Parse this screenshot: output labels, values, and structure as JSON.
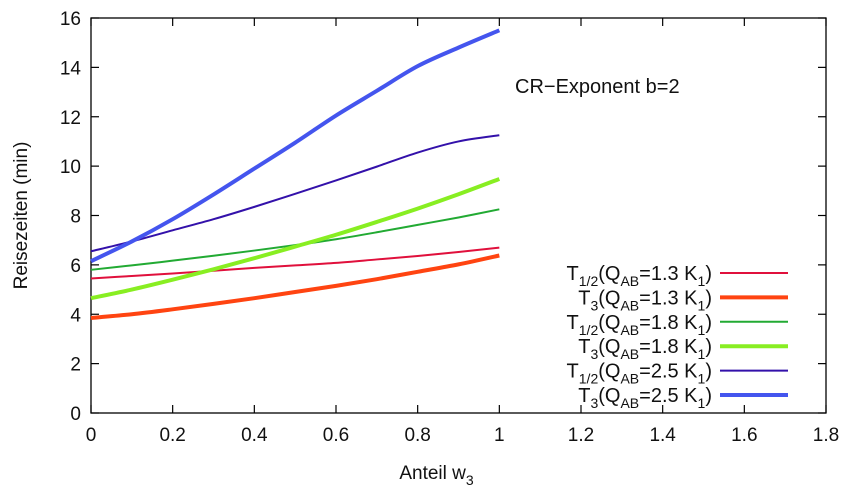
{
  "chart_data": {
    "type": "line",
    "xlabel": "Anteil w",
    "xlabel_sub": "3",
    "ylabel": "Reisezeiten (min)",
    "xlim": [
      0,
      1.8
    ],
    "ylim": [
      0,
      16
    ],
    "xticks": [
      0,
      0.2,
      0.4,
      0.6,
      0.8,
      1,
      1.2,
      1.4,
      1.6,
      1.8
    ],
    "xtick_labels": [
      "0",
      "0.2",
      "0.4",
      "0.6",
      "0.8",
      "1",
      "1.2",
      "1.4",
      "1.6",
      "1.8"
    ],
    "yticks": [
      0,
      2,
      4,
      6,
      8,
      10,
      12,
      14,
      16
    ],
    "ytick_labels": [
      "0",
      "2",
      "4",
      "6",
      "8",
      "10",
      "12",
      "14",
      "16"
    ],
    "grid": false,
    "legend_position": "bottom-right",
    "annotation": "CR−Exponent b=2",
    "x": [
      0,
      0.1,
      0.2,
      0.3,
      0.4,
      0.5,
      0.6,
      0.7,
      0.8,
      0.9,
      1.0
    ],
    "series": [
      {
        "label_main": "T",
        "label_sub1": "1/2",
        "label_mid": "(Q",
        "label_sub2": "AB",
        "label_rest": "=1.3 K",
        "label_sub3": "1",
        "label_end": ")",
        "color": "#e0103c",
        "width": 2,
        "values": [
          5.45,
          5.55,
          5.65,
          5.76,
          5.88,
          5.98,
          6.08,
          6.22,
          6.36,
          6.52,
          6.7
        ]
      },
      {
        "label_main": "T",
        "label_sub1": "3",
        "label_mid": "(Q",
        "label_sub2": "AB",
        "label_rest": "=1.3 K",
        "label_sub3": "1",
        "label_end": ")",
        "color": "#ff4411",
        "width": 4,
        "values": [
          3.85,
          4.0,
          4.2,
          4.42,
          4.65,
          4.9,
          5.15,
          5.42,
          5.72,
          6.02,
          6.38
        ]
      },
      {
        "label_main": "T",
        "label_sub1": "1/2",
        "label_mid": "(Q",
        "label_sub2": "AB",
        "label_rest": "=1.8 K",
        "label_sub3": "1",
        "label_end": ")",
        "color": "#22aa33",
        "width": 2,
        "values": [
          5.8,
          5.98,
          6.17,
          6.37,
          6.58,
          6.8,
          7.04,
          7.32,
          7.62,
          7.92,
          8.25
        ]
      },
      {
        "label_main": "T",
        "label_sub1": "3",
        "label_mid": "(Q",
        "label_sub2": "AB",
        "label_rest": "=1.8 K",
        "label_sub3": "1",
        "label_end": ")",
        "color": "#88ee22",
        "width": 4,
        "values": [
          4.65,
          5.0,
          5.4,
          5.82,
          6.27,
          6.74,
          7.22,
          7.74,
          8.28,
          8.86,
          9.48
        ]
      },
      {
        "label_main": "T",
        "label_sub1": "1/2",
        "label_mid": "(Q",
        "label_sub2": "AB",
        "label_rest": "=2.5 K",
        "label_sub3": "1",
        "label_end": ")",
        "color": "#3311aa",
        "width": 2,
        "values": [
          6.55,
          6.95,
          7.4,
          7.85,
          8.35,
          8.88,
          9.42,
          9.98,
          10.55,
          11.0,
          11.25
        ]
      },
      {
        "label_main": "T",
        "label_sub1": "3",
        "label_mid": "(Q",
        "label_sub2": "AB",
        "label_rest": "=2.5 K",
        "label_sub3": "1",
        "label_end": ")",
        "color": "#4455ee",
        "width": 4,
        "values": [
          6.15,
          6.95,
          7.85,
          8.85,
          9.9,
          10.95,
          12.05,
          13.05,
          14.05,
          14.8,
          15.5
        ]
      }
    ]
  }
}
